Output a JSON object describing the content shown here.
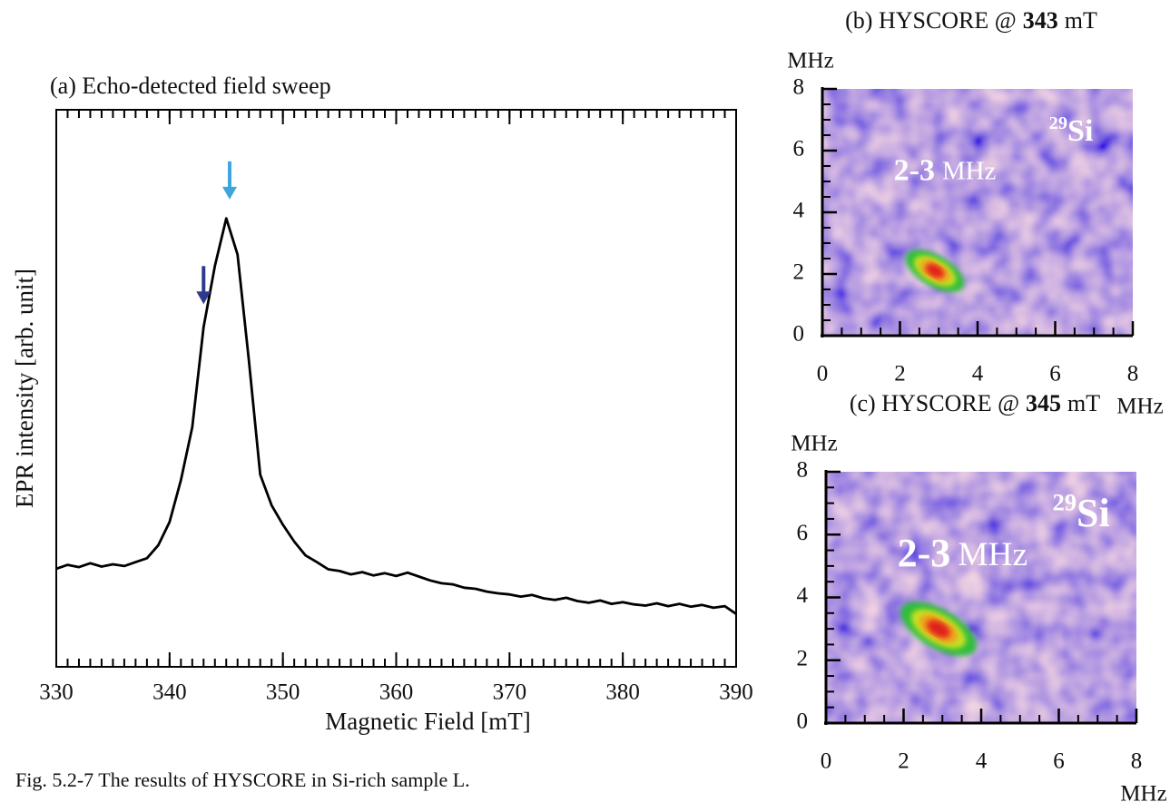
{
  "chart_data": [
    {
      "type": "line",
      "title": "(a) Echo-detected field sweep",
      "xlabel": "Magnetic Field [mT]",
      "ylabel": "EPR intensity [arb. unit]",
      "xlim": [
        330,
        390
      ],
      "xticks": [
        330,
        340,
        350,
        360,
        370,
        380,
        390
      ],
      "ylim": [
        0,
        100
      ],
      "series": [
        {
          "color": "#000000",
          "x": [
            330,
            331,
            332,
            333,
            334,
            335,
            336,
            337,
            338,
            339,
            340,
            341,
            342,
            343,
            344,
            345,
            346,
            347,
            348,
            349,
            350,
            351,
            352,
            353,
            354,
            355,
            356,
            357,
            358,
            359,
            360,
            361,
            362,
            363,
            364,
            365,
            366,
            367,
            368,
            369,
            370,
            371,
            372,
            373,
            374,
            375,
            376,
            377,
            378,
            379,
            380,
            381,
            382,
            383,
            384,
            385,
            386,
            387,
            388,
            389,
            390
          ],
          "values": [
            17.6,
            18.3,
            17.9,
            18.6,
            18.0,
            18.4,
            18.1,
            18.8,
            19.5,
            21.8,
            26.0,
            33.5,
            43.0,
            61.0,
            72.0,
            80.5,
            74.0,
            55.0,
            34.5,
            29.0,
            25.5,
            22.5,
            20.0,
            18.8,
            17.5,
            17.2,
            16.6,
            17.0,
            16.4,
            16.8,
            16.3,
            16.9,
            16.2,
            15.5,
            15.0,
            14.8,
            14.2,
            14.0,
            13.5,
            13.2,
            13.0,
            12.6,
            12.9,
            12.3,
            12.0,
            12.4,
            11.8,
            11.5,
            11.9,
            11.3,
            11.6,
            11.2,
            11.0,
            11.4,
            10.9,
            11.3,
            10.8,
            11.1,
            10.6,
            10.9,
            9.5
          ]
        }
      ],
      "arrows": [
        {
          "x": 345.3,
          "y": 83.9,
          "color": "#3ea6dc"
        },
        {
          "x": 343,
          "y": 65.1,
          "color": "#2e3a8c"
        }
      ]
    },
    {
      "type": "heatmap",
      "title": [
        "(b) HYSCORE @",
        "343",
        "mT"
      ],
      "xlabel": "MHz",
      "ylabel": "MHz",
      "xlim": [
        0,
        8
      ],
      "ylim": [
        0,
        8
      ],
      "xticks": [
        0,
        2,
        4,
        6,
        8
      ],
      "yticks": [
        0,
        2,
        4,
        6,
        8
      ],
      "peaks": [
        {
          "x": 2.9,
          "y": 2.1
        }
      ],
      "annotations": {
        "range": [
          "2-3",
          "MHz"
        ],
        "nucleus": [
          "29",
          "Si"
        ]
      }
    },
    {
      "type": "heatmap",
      "title": [
        "(c) HYSCORE @",
        "345",
        "mT"
      ],
      "xlabel": "MHz",
      "ylabel": "MHz",
      "xlim": [
        0,
        8
      ],
      "ylim": [
        0,
        8
      ],
      "xticks": [
        0,
        2,
        4,
        6,
        8
      ],
      "yticks": [
        0,
        2,
        4,
        6,
        8
      ],
      "peaks": [
        {
          "x": 2.9,
          "y": 3.0
        }
      ],
      "annotations": {
        "range": [
          "2-3",
          "MHz"
        ],
        "nucleus": [
          "29",
          "Si"
        ]
      }
    }
  ],
  "caption": "Fig. 5.2-7 The results of HYSCORE in Si-rich sample L."
}
